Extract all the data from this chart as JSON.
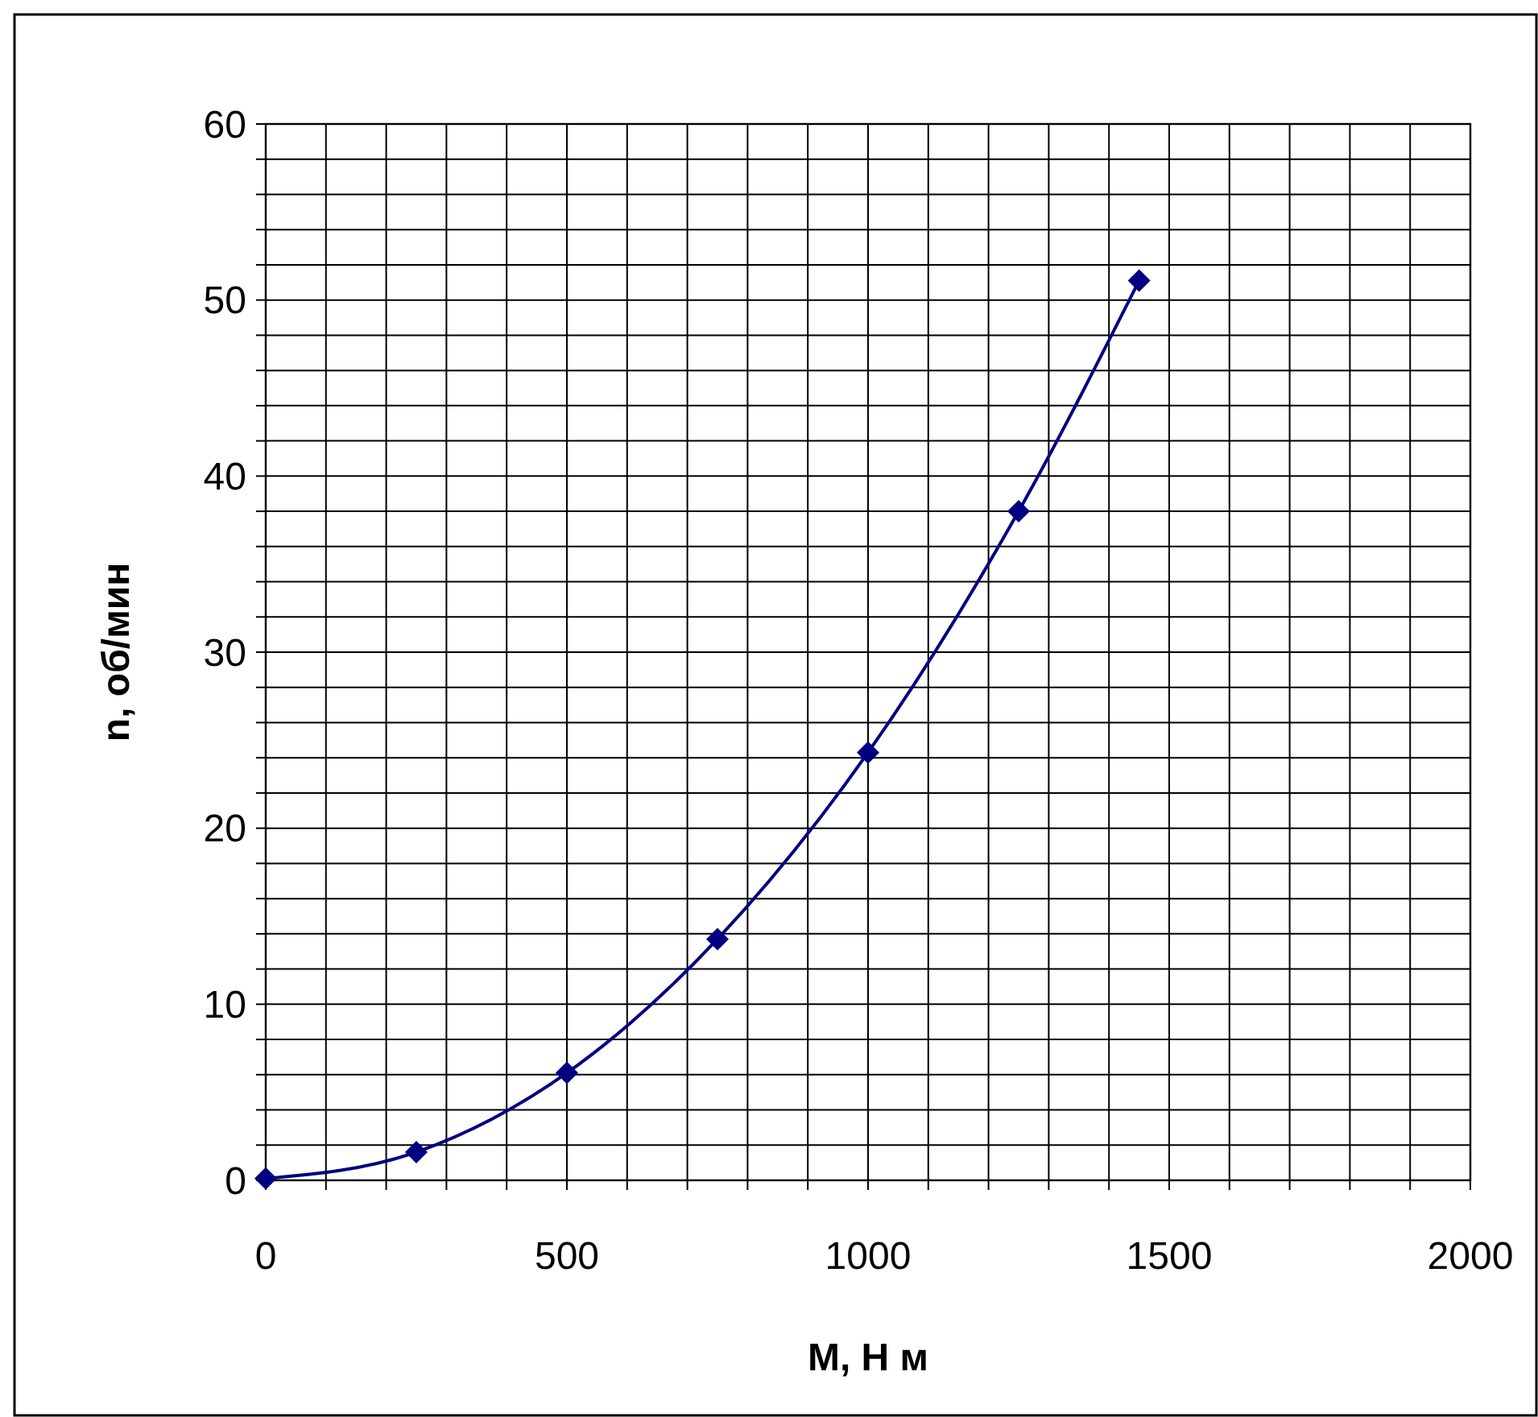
{
  "chart_data": {
    "type": "line",
    "xlabel": "M, Н м",
    "ylabel": "n, об/мин",
    "x": [
      0,
      250,
      500,
      750,
      1000,
      1250,
      1450
    ],
    "series": [
      {
        "color": "#000080",
        "values": [
          0.1,
          1.6,
          6.1,
          13.7,
          24.3,
          38.0,
          51.1
        ]
      }
    ],
    "xlim": [
      0,
      2000
    ],
    "xticks": [
      0,
      {
        "value": 100,
        "label": null
      },
      {
        "value": 200,
        "label": null
      },
      {
        "value": 300,
        "label": null
      },
      {
        "value": 400,
        "label": null
      },
      500,
      {
        "value": 600,
        "label": null
      },
      {
        "value": 700,
        "label": null
      },
      {
        "value": 800,
        "label": null
      },
      {
        "value": 900,
        "label": null
      },
      1000,
      {
        "value": 1100,
        "label": null
      },
      {
        "value": 1200,
        "label": null
      },
      {
        "value": 1300,
        "label": null
      },
      {
        "value": 1400,
        "label": null
      },
      1500,
      {
        "value": 1600,
        "label": null
      },
      {
        "value": 1700,
        "label": null
      },
      {
        "value": 1800,
        "label": null
      },
      {
        "value": 1900,
        "label": null
      },
      2000
    ],
    "ylim": [
      0,
      60
    ],
    "yticks": [
      0,
      {
        "value": 2,
        "label": null
      },
      {
        "value": 4,
        "label": null
      },
      {
        "value": 6,
        "label": null
      },
      {
        "value": 8,
        "label": null
      },
      10,
      {
        "value": 12,
        "label": null
      },
      {
        "value": 14,
        "label": null
      },
      {
        "value": 16,
        "label": null
      },
      {
        "value": 18,
        "label": null
      },
      20,
      {
        "value": 22,
        "label": null
      },
      {
        "value": 24,
        "label": null
      },
      {
        "value": 26,
        "label": null
      },
      {
        "value": 28,
        "label": null
      },
      30,
      {
        "value": 32,
        "label": null
      },
      {
        "value": 34,
        "label": null
      },
      {
        "value": 36,
        "label": null
      },
      {
        "value": 38,
        "label": null
      },
      40,
      {
        "value": 42,
        "label": null
      },
      {
        "value": 44,
        "label": null
      },
      {
        "value": 46,
        "label": null
      },
      {
        "value": 48,
        "label": null
      },
      50,
      {
        "value": 52,
        "label": null
      },
      {
        "value": 54,
        "label": null
      },
      {
        "value": 56,
        "label": null
      },
      {
        "value": 58,
        "label": null
      },
      60
    ],
    "grid": true,
    "marker": "diamond",
    "line_style": "solid"
  }
}
